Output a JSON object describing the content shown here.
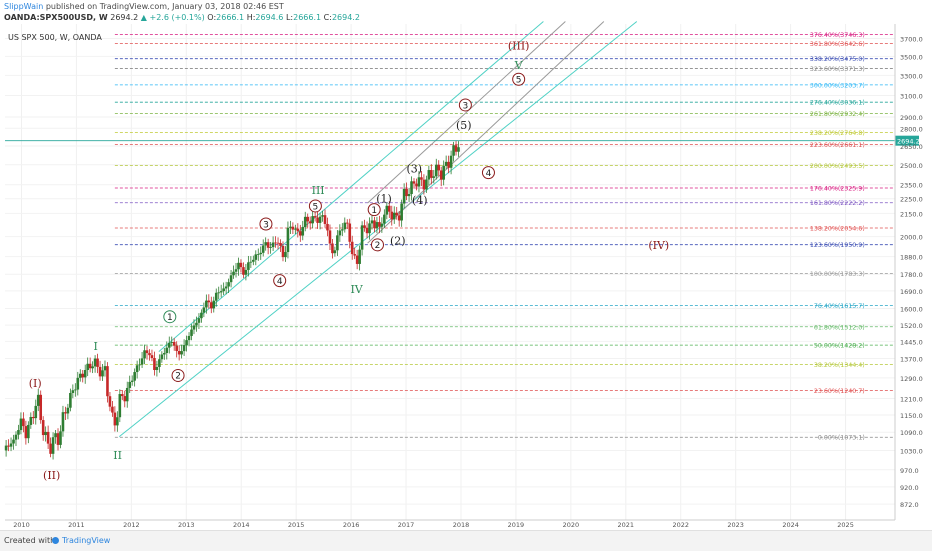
{
  "header": {
    "user": "SlippWain",
    "published_text": "published on TradingView.com, January 03, 2018 02:46 EST",
    "symbol": "OANDA:SPX500USD, W",
    "last": "2694.2",
    "change": "▲ +2.6 (+0.1%)",
    "o_label": "O:",
    "o_val": "2666.1",
    "h_label": "H:",
    "h_val": "2694.6",
    "l_label": "L:",
    "l_val": "2666.1",
    "c_label": "C:",
    "c_val": "2694.2"
  },
  "footer": {
    "created_with": "Created with",
    "brand": "TradingView"
  },
  "chart_data": {
    "type": "candlestick",
    "title": "US SPX 500, W, OANDA",
    "xlabel": "",
    "ylabel": "",
    "x_range": [
      2009.7,
      2025.9
    ],
    "y_range_log": [
      830,
      3870
    ],
    "x_ticks": [
      "2010",
      "2011",
      "2012",
      "2013",
      "2014",
      "2015",
      "2016",
      "2017",
      "2018",
      "2019",
      "2020",
      "2021",
      "2022",
      "2023",
      "2024",
      "2025"
    ],
    "y_ticks": [
      872.0,
      920.0,
      970.0,
      1030.0,
      1090.0,
      1150.0,
      1210.0,
      1290.0,
      1370.0,
      1445.0,
      1520.0,
      1600.0,
      1690.0,
      1780.0,
      1880.0,
      2000.0,
      2150.0,
      2250.0,
      2350.0,
      2500.0,
      2650.0,
      2800.0,
      2900.0,
      3100.0,
      3300.0,
      3500.0,
      3700.0
    ],
    "current_price": 2694.2,
    "current_price_label": "2694.2",
    "price_path": [
      [
        2009.72,
        1030
      ],
      [
        2009.78,
        1070
      ],
      [
        2009.85,
        1040
      ],
      [
        2009.92,
        1110
      ],
      [
        2010.0,
        1120
      ],
      [
        2010.08,
        1090
      ],
      [
        2010.15,
        1115
      ],
      [
        2010.25,
        1180
      ],
      [
        2010.3,
        1210
      ],
      [
        2010.38,
        1100
      ],
      [
        2010.45,
        1070
      ],
      [
        2010.52,
        1030
      ],
      [
        2010.6,
        1080
      ],
      [
        2010.68,
        1060
      ],
      [
        2010.75,
        1140
      ],
      [
        2010.85,
        1190
      ],
      [
        2010.95,
        1250
      ],
      [
        2011.05,
        1290
      ],
      [
        2011.15,
        1320
      ],
      [
        2011.25,
        1340
      ],
      [
        2011.35,
        1355
      ],
      [
        2011.45,
        1300
      ],
      [
        2011.52,
        1330
      ],
      [
        2011.58,
        1200
      ],
      [
        2011.65,
        1150
      ],
      [
        2011.72,
        1110
      ],
      [
        2011.8,
        1230
      ],
      [
        2011.88,
        1210
      ],
      [
        2011.95,
        1260
      ],
      [
        2012.1,
        1330
      ],
      [
        2012.25,
        1400
      ],
      [
        2012.35,
        1390
      ],
      [
        2012.42,
        1320
      ],
      [
        2012.5,
        1360
      ],
      [
        2012.65,
        1420
      ],
      [
        2012.75,
        1450
      ],
      [
        2012.85,
        1380
      ],
      [
        2012.95,
        1420
      ],
      [
        2013.1,
        1500
      ],
      [
        2013.25,
        1560
      ],
      [
        2013.38,
        1650
      ],
      [
        2013.45,
        1600
      ],
      [
        2013.55,
        1680
      ],
      [
        2013.7,
        1700
      ],
      [
        2013.8,
        1760
      ],
      [
        2013.95,
        1840
      ],
      [
        2014.05,
        1780
      ],
      [
        2014.15,
        1850
      ],
      [
        2014.3,
        1890
      ],
      [
        2014.45,
        1960
      ],
      [
        2014.55,
        1930
      ],
      [
        2014.65,
        1990
      ],
      [
        2014.78,
        1860
      ],
      [
        2014.85,
        2040
      ],
      [
        2014.95,
        2070
      ],
      [
        2015.05,
        2000
      ],
      [
        2015.15,
        2100
      ],
      [
        2015.3,
        2110
      ],
      [
        2015.45,
        2120
      ],
      [
        2015.55,
        2100
      ],
      [
        2015.63,
        1890
      ],
      [
        2015.72,
        1950
      ],
      [
        2015.85,
        2090
      ],
      [
        2015.95,
        2050
      ],
      [
        2016.03,
        1880
      ],
      [
        2016.1,
        1830
      ],
      [
        2016.2,
        2040
      ],
      [
        2016.35,
        2070
      ],
      [
        2016.48,
        2100
      ],
      [
        2016.5,
        2000
      ],
      [
        2016.6,
        2170
      ],
      [
        2016.75,
        2150
      ],
      [
        2016.85,
        2100
      ],
      [
        2016.95,
        2270
      ],
      [
        2017.1,
        2330
      ],
      [
        2017.2,
        2390
      ],
      [
        2017.3,
        2350
      ],
      [
        2017.45,
        2430
      ],
      [
        2017.6,
        2460
      ],
      [
        2017.65,
        2430
      ],
      [
        2017.8,
        2550
      ],
      [
        2017.92,
        2650
      ],
      [
        2018.0,
        2694
      ]
    ],
    "fib_levels": [
      {
        "label": "0.00%(1073.1)",
        "value": 1073.1,
        "color": "#888888"
      },
      {
        "label": "23.60%(1240.7)",
        "value": 1240.7,
        "color": "#e05050"
      },
      {
        "label": "38.20%(1344.4)",
        "value": 1344.4,
        "color": "#b5c83a"
      },
      {
        "label": "50.00%(1428.2)",
        "value": 1428.2,
        "color": "#4caf50"
      },
      {
        "label": "61.80%(1512.0)",
        "value": 1512.0,
        "color": "#66bb6a"
      },
      {
        "label": "76.40%(1615.7)",
        "value": 1615.7,
        "color": "#26a6c6"
      },
      {
        "label": "100.00%(1783.3)",
        "value": 1783.3,
        "color": "#999999"
      },
      {
        "label": "123.60%(1950.9)",
        "value": 1950.9,
        "color": "#3f51b5"
      },
      {
        "label": "138.20%(2054.6)",
        "value": 2054.6,
        "color": "#e05050"
      },
      {
        "label": "161.80%(2222.2)",
        "value": 2222.2,
        "color": "#7e57c2"
      },
      {
        "label": "176.40%(2325.9)",
        "value": 2325.9,
        "color": "#d81b80"
      },
      {
        "label": "200.00%(2493.5)",
        "value": 2493.5,
        "color": "#b5c83a"
      },
      {
        "label": "223.60%(2661.1)",
        "value": 2661.1,
        "color": "#e05050"
      },
      {
        "label": "238.20%(2764.8)",
        "value": 2764.8,
        "color": "#c0ca33"
      },
      {
        "label": "261.80%(2932.4)",
        "value": 2932.4,
        "color": "#7cb342"
      },
      {
        "label": "276.40%(3036.1)",
        "value": 3036.1,
        "color": "#26a69a"
      },
      {
        "label": "300.00%(3203.7)",
        "value": 3203.7,
        "color": "#29b6f6"
      },
      {
        "label": "323.60%(3371.3)",
        "value": 3371.3,
        "color": "#888888"
      },
      {
        "label": "338.20%(3475.0)",
        "value": 3475.0,
        "color": "#3f51b5"
      },
      {
        "label": "361.80%(3642.6)",
        "value": 3642.6,
        "color": "#e05050"
      },
      {
        "label": "376.40%(3746.3)",
        "value": 3746.3,
        "color": "#d81b80"
      }
    ],
    "channels": [
      {
        "x1": 2011.78,
        "y1": 1075,
        "x2": 2021.2,
        "y2": 3900,
        "color": "#4fd1c5"
      },
      {
        "x1": 2012.5,
        "y1": 1400,
        "x2": 2019.5,
        "y2": 3900,
        "color": "#4fd1c5"
      },
      {
        "x1": 2016.3,
        "y1": 1960,
        "x2": 2020.6,
        "y2": 3900,
        "color": "#999999"
      },
      {
        "x1": 2016.3,
        "y1": 2220,
        "x2": 2019.9,
        "y2": 3900,
        "color": "#999999"
      }
    ],
    "wave_labels": [
      {
        "text": "(I)",
        "x": 2010.25,
        "y": 1270,
        "color": "#8b1a1a",
        "style": "plain"
      },
      {
        "text": "(II)",
        "x": 2010.55,
        "y": 955,
        "color": "#8b1a1a",
        "style": "plain"
      },
      {
        "text": "I",
        "x": 2011.35,
        "y": 1425,
        "color": "#2e8b57",
        "style": "plain"
      },
      {
        "text": "II",
        "x": 2011.75,
        "y": 1015,
        "color": "#2e8b57",
        "style": "plain"
      },
      {
        "text": "1",
        "x": 2012.7,
        "y": 1560,
        "color": "#2e8b57",
        "style": "circle"
      },
      {
        "text": "2",
        "x": 2012.85,
        "y": 1300,
        "color": "#8b1a1a",
        "style": "circle"
      },
      {
        "text": "3",
        "x": 2014.45,
        "y": 2080,
        "color": "#8b1a1a",
        "style": "circle"
      },
      {
        "text": "4",
        "x": 2014.7,
        "y": 1745,
        "color": "#8b1a1a",
        "style": "circle"
      },
      {
        "text": "III",
        "x": 2015.4,
        "y": 2310,
        "color": "#2e8b57",
        "style": "plain"
      },
      {
        "text": "5",
        "x": 2015.35,
        "y": 2200,
        "color": "#8b1a1a",
        "style": "circle"
      },
      {
        "text": "IV",
        "x": 2016.1,
        "y": 1700,
        "color": "#2e8b57",
        "style": "plain"
      },
      {
        "text": "1",
        "x": 2016.42,
        "y": 2175,
        "color": "#8b1a1a",
        "style": "circle"
      },
      {
        "text": "(1)",
        "x": 2016.6,
        "y": 2250,
        "color": "#222222",
        "style": "plain"
      },
      {
        "text": "2",
        "x": 2016.48,
        "y": 1950,
        "color": "#8b1a1a",
        "style": "circle"
      },
      {
        "text": "(2)",
        "x": 2016.85,
        "y": 1975,
        "color": "#222222",
        "style": "plain"
      },
      {
        "text": "(3)",
        "x": 2017.15,
        "y": 2470,
        "color": "#222222",
        "style": "plain"
      },
      {
        "text": "(4)",
        "x": 2017.25,
        "y": 2240,
        "color": "#222222",
        "style": "plain"
      },
      {
        "text": "(5)",
        "x": 2018.05,
        "y": 2830,
        "color": "#222222",
        "style": "plain"
      },
      {
        "text": "3",
        "x": 2018.08,
        "y": 3010,
        "color": "#8b1a1a",
        "style": "circle"
      },
      {
        "text": "4",
        "x": 2018.5,
        "y": 2440,
        "color": "#8b1a1a",
        "style": "circle"
      },
      {
        "text": "(III)",
        "x": 2019.05,
        "y": 3620,
        "color": "#8b1a1a",
        "style": "plain"
      },
      {
        "text": "V",
        "x": 2019.05,
        "y": 3410,
        "color": "#2e8b57",
        "style": "plain"
      },
      {
        "text": "5",
        "x": 2019.05,
        "y": 3260,
        "color": "#8b1a1a",
        "style": "circle"
      },
      {
        "text": "(IV)",
        "x": 2021.6,
        "y": 1950,
        "color": "#8b1a1a",
        "style": "plain"
      }
    ]
  }
}
